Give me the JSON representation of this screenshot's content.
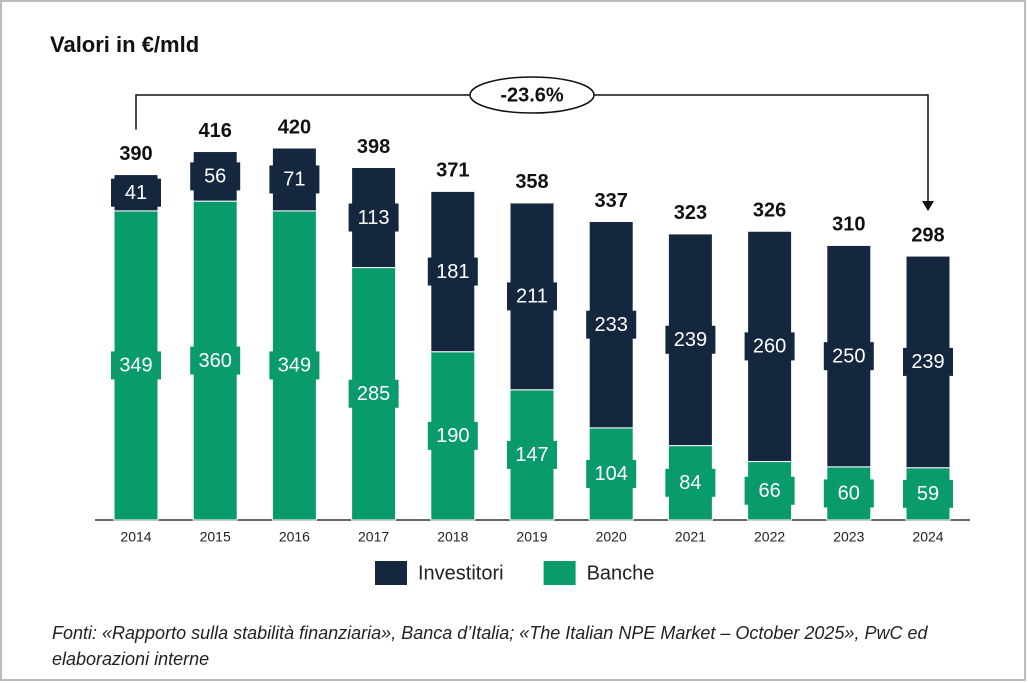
{
  "chart_data": {
    "type": "stacked_bar",
    "title": "Valori in €/mld",
    "categories": [
      "2014",
      "2015",
      "2016",
      "2017",
      "2018",
      "2019",
      "2020",
      "2021",
      "2022",
      "2023",
      "2024"
    ],
    "series": [
      {
        "name": "Banche",
        "color": "#0a9b6c",
        "values": [
          349,
          360,
          349,
          285,
          190,
          147,
          104,
          84,
          66,
          60,
          59
        ]
      },
      {
        "name": "Investitori",
        "color": "#14273f",
        "values": [
          41,
          56,
          71,
          113,
          181,
          211,
          233,
          239,
          260,
          250,
          239
        ]
      }
    ],
    "totals": [
      390,
      416,
      420,
      398,
      371,
      358,
      337,
      323,
      326,
      310,
      298
    ],
    "annotation": "-23.6%",
    "source": "Fonti: «Rapporto sulla stabilità finanziaria», Banca d’Italia; «The Italian NPE Market – October 2025», PwC ed elaborazioni interne"
  }
}
